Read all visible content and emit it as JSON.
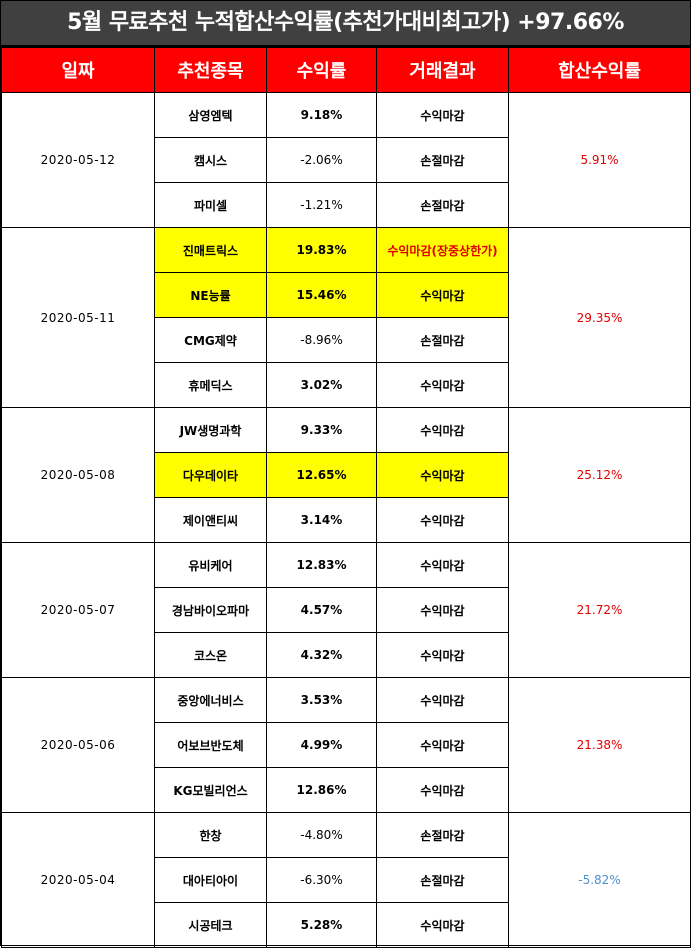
{
  "title": "5월 무료추천 누적합산수익률(추천가대비최고가) +97.66%",
  "headers": [
    "일짜",
    "추천종목",
    "수익률",
    "거래결과",
    "합산수익률"
  ],
  "groups": [
    {
      "date": "2020-05-12",
      "total": "5.91%",
      "total_sign": "pos",
      "rows": [
        {
          "name": "삼영엠텍",
          "return": "9.18%",
          "sign": "pos",
          "result": "수익마감",
          "highlight": false
        },
        {
          "name": "캠시스",
          "return": "-2.06%",
          "sign": "neg",
          "result": "손절마감",
          "highlight": false
        },
        {
          "name": "파미셀",
          "return": "-1.21%",
          "sign": "neg",
          "result": "손절마감",
          "highlight": false
        }
      ]
    },
    {
      "date": "2020-05-11",
      "total": "29.35%",
      "total_sign": "pos",
      "rows": [
        {
          "name": "진매트릭스",
          "return": "19.83%",
          "sign": "pos",
          "result": "수익마감(장중상한가)",
          "highlight": true
        },
        {
          "name": "NE능률",
          "return": "15.46%",
          "sign": "pos",
          "result": "수익마감",
          "highlight": true
        },
        {
          "name": "CMG제약",
          "return": "-8.96%",
          "sign": "neg",
          "result": "손절마감",
          "highlight": false
        },
        {
          "name": "휴메딕스",
          "return": "3.02%",
          "sign": "pos",
          "result": "수익마감",
          "highlight": false
        }
      ]
    },
    {
      "date": "2020-05-08",
      "total": "25.12%",
      "total_sign": "pos",
      "rows": [
        {
          "name": "JW생명과학",
          "return": "9.33%",
          "sign": "pos",
          "result": "수익마감",
          "highlight": false
        },
        {
          "name": "다우데이타",
          "return": "12.65%",
          "sign": "pos",
          "result": "수익마감",
          "highlight": true
        },
        {
          "name": "제이앤티씨",
          "return": "3.14%",
          "sign": "pos",
          "result": "수익마감",
          "highlight": false
        }
      ]
    },
    {
      "date": "2020-05-07",
      "total": "21.72%",
      "total_sign": "pos",
      "rows": [
        {
          "name": "유비케어",
          "return": "12.83%",
          "sign": "pos",
          "result": "수익마감",
          "highlight": false
        },
        {
          "name": "경남바이오파마",
          "return": "4.57%",
          "sign": "pos",
          "result": "수익마감",
          "highlight": false
        },
        {
          "name": "코스온",
          "return": "4.32%",
          "sign": "pos",
          "result": "수익마감",
          "highlight": false
        }
      ]
    },
    {
      "date": "2020-05-06",
      "total": "21.38%",
      "total_sign": "pos",
      "rows": [
        {
          "name": "중앙에너비스",
          "return": "3.53%",
          "sign": "pos",
          "result": "수익마감",
          "highlight": false
        },
        {
          "name": "어보브반도체",
          "return": "4.99%",
          "sign": "pos",
          "result": "수익마감",
          "highlight": false
        },
        {
          "name": "KG모빌리언스",
          "return": "12.86%",
          "sign": "pos",
          "result": "수익마감",
          "highlight": false
        }
      ]
    },
    {
      "date": "2020-05-04",
      "total": "-5.82%",
      "total_sign": "neg",
      "rows": [
        {
          "name": "한창",
          "return": "-4.80%",
          "sign": "neg",
          "result": "손절마감",
          "highlight": false
        },
        {
          "name": "대아티아이",
          "return": "-6.30%",
          "sign": "neg",
          "result": "손절마감",
          "highlight": false
        },
        {
          "name": "시공테크",
          "return": "5.28%",
          "sign": "pos",
          "result": "수익마감",
          "highlight": false
        }
      ]
    }
  ],
  "colors": {
    "title_bg": "#404040",
    "header_bg": "#ff0000",
    "positive": "#e00000",
    "negative": "#4f8fd0",
    "highlight": "#ffff00"
  }
}
